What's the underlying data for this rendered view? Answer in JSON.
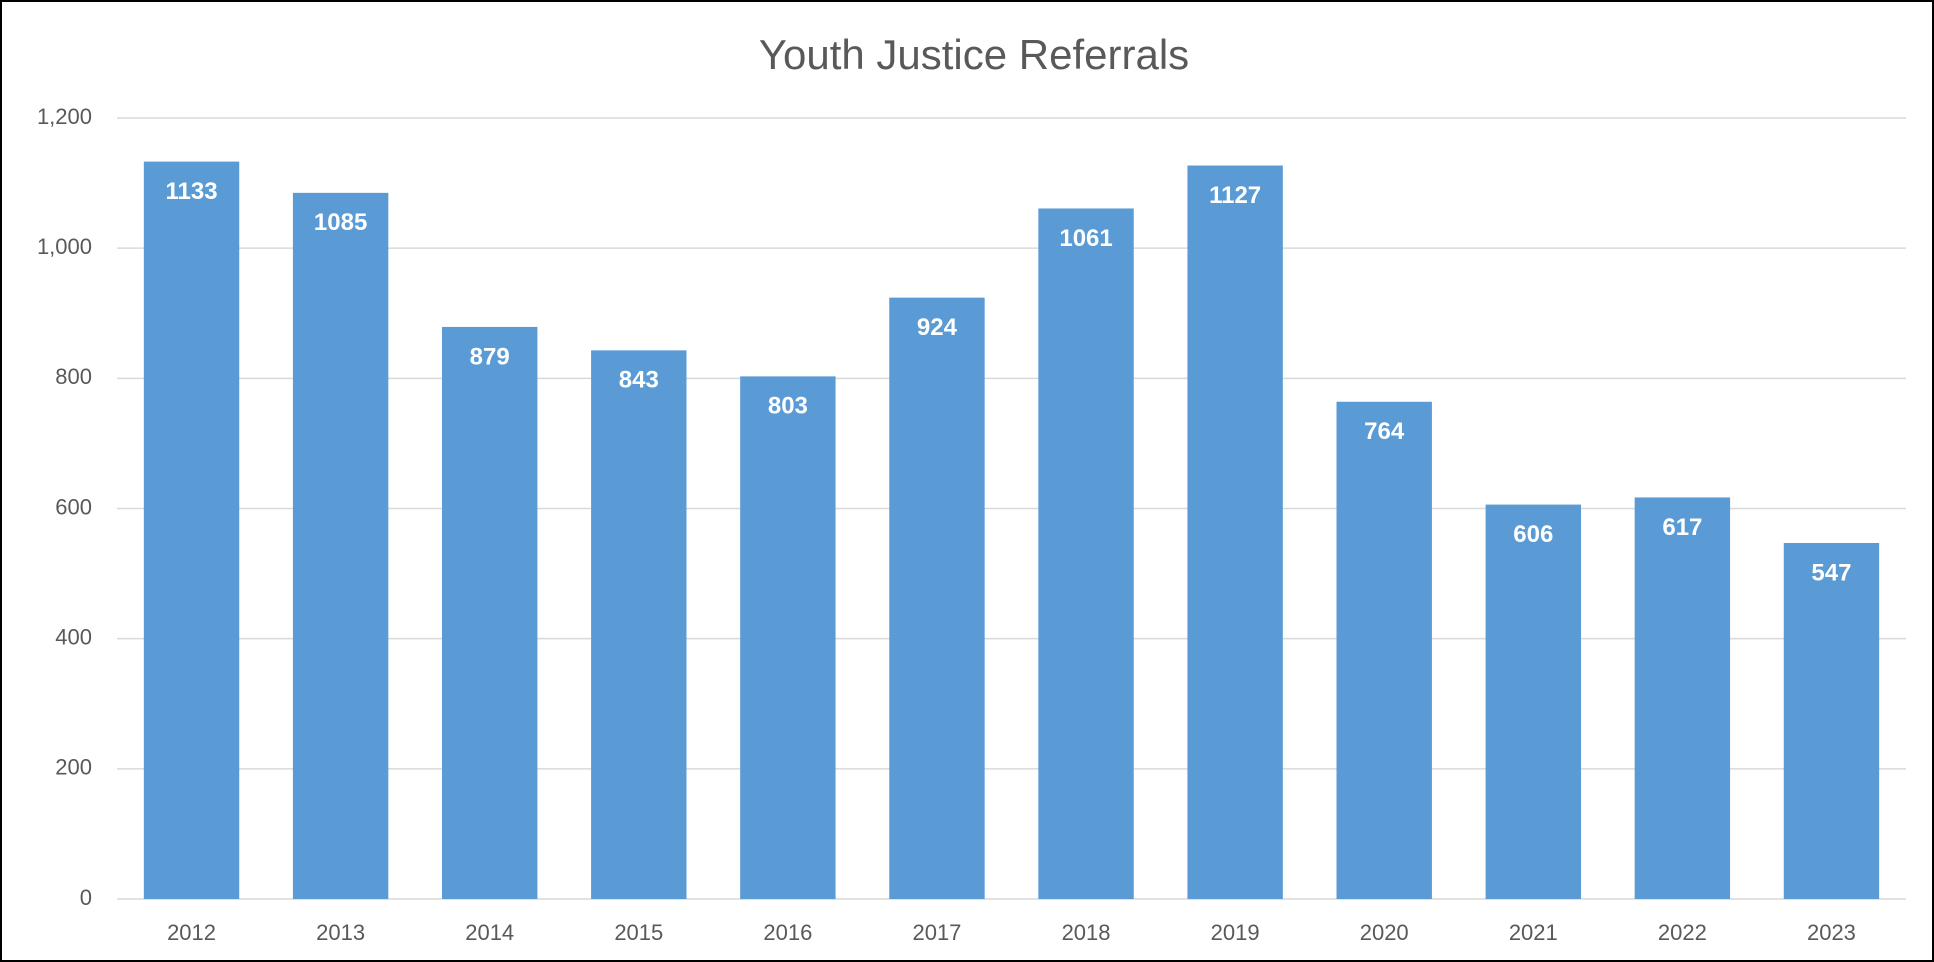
{
  "chart_data": {
    "type": "bar",
    "title": "Youth Justice Referrals",
    "categories": [
      "2012",
      "2013",
      "2014",
      "2015",
      "2016",
      "2017",
      "2018",
      "2019",
      "2020",
      "2021",
      "2022",
      "2023"
    ],
    "values": [
      1133,
      1085,
      879,
      843,
      803,
      924,
      1061,
      1127,
      764,
      606,
      617,
      547
    ],
    "color": "#5b9bd5",
    "ylim": [
      0,
      1200
    ],
    "yticks": [
      0,
      200,
      400,
      600,
      800,
      {
        "value": 1000,
        "label": "1,000"
      },
      {
        "value": 1200,
        "label": "1,200"
      }
    ],
    "grid": true
  }
}
